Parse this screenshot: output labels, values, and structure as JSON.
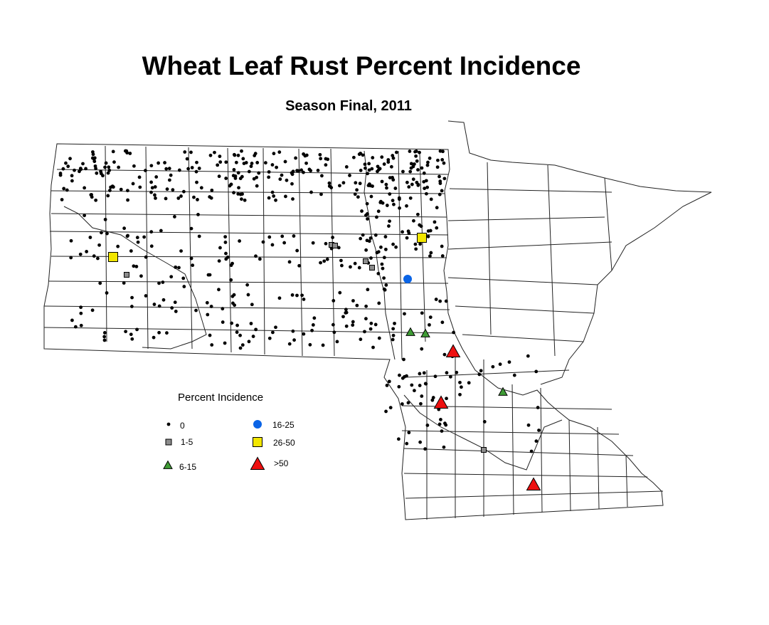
{
  "title": "Wheat Leaf Rust Percent Incidence",
  "subtitle": "Season Final, 2011",
  "colors": {
    "zero": "#000000",
    "low": "#8c8c8c",
    "mid": "#3f9c35",
    "blue": "#0a64e6",
    "yellow": "#f2e600",
    "red": "#ee1010"
  },
  "legend": {
    "title": "Percent Incidence",
    "items": [
      {
        "label": "0",
        "symbol": "dot",
        "color": "#000000"
      },
      {
        "label": "1-5",
        "symbol": "square",
        "color": "#8c8c8c"
      },
      {
        "label": "6-15",
        "symbol": "triangle",
        "color": "#3f9c35"
      },
      {
        "label": "16-25",
        "symbol": "circle",
        "color": "#0a64e6"
      },
      {
        "label": "26-50",
        "symbol": "square",
        "color": "#f2e600"
      },
      {
        "label": ">50",
        "symbol": "triangle",
        "color": "#ee1010"
      }
    ]
  }
}
